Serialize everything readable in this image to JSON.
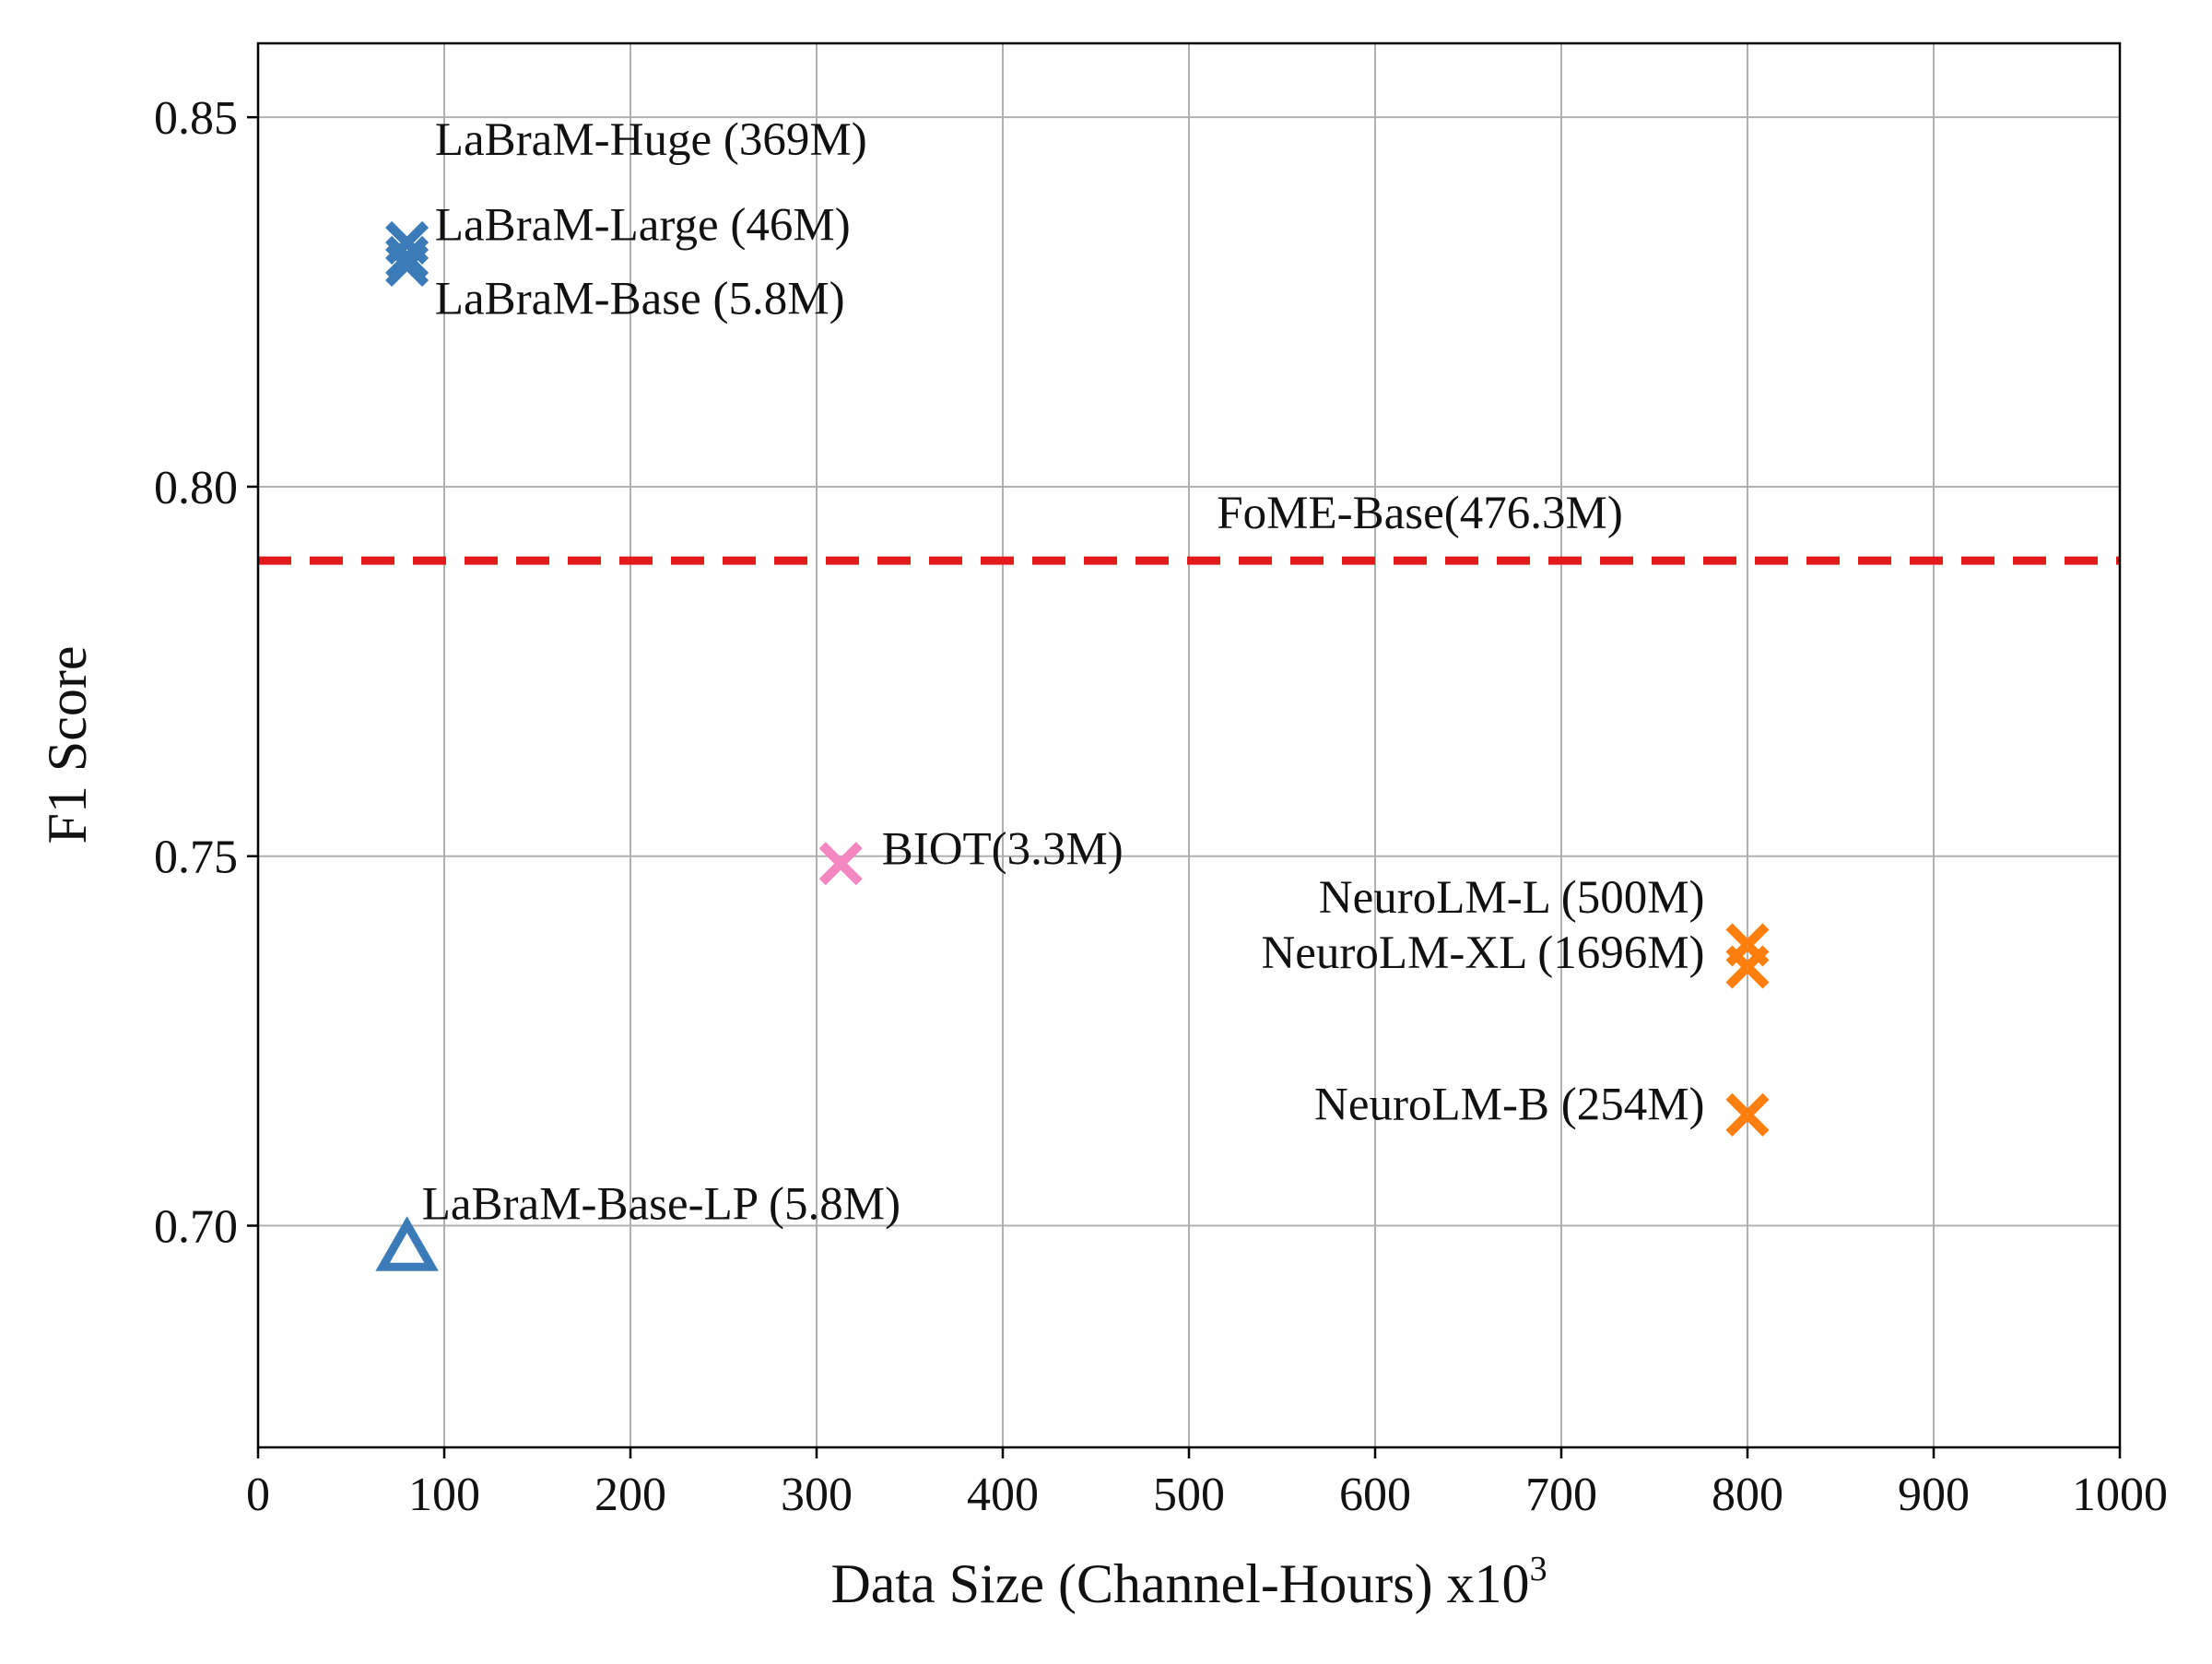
{
  "chart_data": {
    "type": "scatter",
    "xlabel": "Data Size (Channel-Hours) x10",
    "xlabel_superscript": "3",
    "ylabel": "F1 Score",
    "xlim": [
      0,
      1000
    ],
    "ylim": [
      0.67,
      0.86
    ],
    "xticks": [
      "0",
      "100",
      "200",
      "300",
      "400",
      "500",
      "600",
      "700",
      "800",
      "900",
      "1000"
    ],
    "yticks": [
      "0.70",
      "0.75",
      "0.80",
      "0.85"
    ],
    "grid": true,
    "colors": {
      "labram": "#3a7bb8",
      "biot": "#f487c0",
      "neurolm": "#ff7f0e",
      "fome": "#e31a1c"
    },
    "points": [
      {
        "name": "LaBraM-Huge (369M)",
        "x": 80,
        "y": 0.833,
        "marker": "x",
        "color_key": "labram"
      },
      {
        "name": "LaBraM-Large (46M)",
        "x": 80,
        "y": 0.831,
        "marker": "x",
        "color_key": "labram"
      },
      {
        "name": "LaBraM-Base (5.8M)",
        "x": 80,
        "y": 0.83,
        "marker": "x",
        "color_key": "labram"
      },
      {
        "name": "BIOT(3.3M)",
        "x": 313,
        "y": 0.749,
        "marker": "x",
        "color_key": "biot"
      },
      {
        "name": "NeuroLM-L (500M)",
        "x": 800,
        "y": 0.738,
        "marker": "x",
        "color_key": "neurolm"
      },
      {
        "name": "NeuroLM-XL (1696M)",
        "x": 800,
        "y": 0.735,
        "marker": "x",
        "color_key": "neurolm"
      },
      {
        "name": "NeuroLM-B (254M)",
        "x": 800,
        "y": 0.715,
        "marker": "x",
        "color_key": "neurolm"
      },
      {
        "name": "LaBraM-Base-LP (5.8M)",
        "x": 80,
        "y": 0.697,
        "marker": "triangle",
        "color_key": "labram"
      }
    ],
    "reference_line": {
      "name": "FoME-Base(476.3M)",
      "y": 0.79,
      "style": "dashed",
      "color_key": "fome"
    },
    "annotations": [
      {
        "text": "LaBraM-Huge (369M)",
        "x": 95,
        "y": 0.847,
        "anchor": "start"
      },
      {
        "text": "LaBraM-Large (46M)",
        "x": 95,
        "y": 0.8355,
        "anchor": "start"
      },
      {
        "text": "LaBraM-Base (5.8M)",
        "x": 95,
        "y": 0.8255,
        "anchor": "start"
      },
      {
        "text": "FoME-Base(476.3M)",
        "x": 515,
        "y": 0.7965,
        "anchor": "start"
      },
      {
        "text": "BIOT(3.3M)",
        "x": 335,
        "y": 0.751,
        "anchor": "start"
      },
      {
        "text": "NeuroLM-L (500M)",
        "x": 777,
        "y": 0.7445,
        "anchor": "end"
      },
      {
        "text": "NeuroLM-XL (1696M)",
        "x": 777,
        "y": 0.737,
        "anchor": "end"
      },
      {
        "text": "NeuroLM-B (254M)",
        "x": 777,
        "y": 0.7165,
        "anchor": "end"
      },
      {
        "text": "LaBraM-Base-LP (5.8M)",
        "x": 88,
        "y": 0.703,
        "anchor": "start"
      }
    ]
  }
}
